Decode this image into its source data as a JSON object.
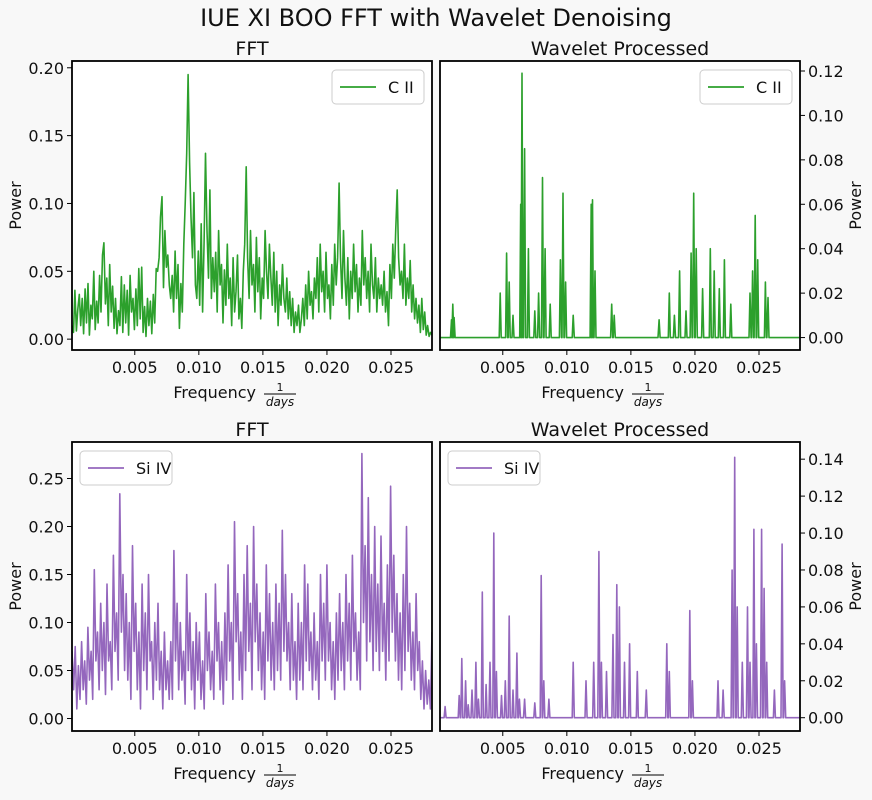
{
  "title": "IUE XI BOO FFT with Wavelet Denoising",
  "xlabel": "Frequency",
  "xlabel_frac_num": "1",
  "xlabel_frac_den": "days",
  "chart_data": [
    {
      "type": "line",
      "title": "FFT",
      "ylabel": "Power",
      "y_axis_side": "left",
      "legend": "upper right",
      "series_name": "C II",
      "color": "#2ca02c",
      "xlim": [
        0.0001,
        0.0282
      ],
      "ylim": [
        -0.008,
        0.205
      ],
      "xticks": [
        0.005,
        0.01,
        0.015,
        0.02,
        0.025
      ],
      "xtick_labels": [
        "0.005",
        "0.010",
        "0.015",
        "0.020",
        "0.025"
      ],
      "yticks": [
        0,
        0.05,
        0.1,
        0.15,
        0.2
      ],
      "ytick_labels": [
        "0.00",
        "0.05",
        "0.10",
        "0.15",
        "0.20"
      ],
      "x_start": 0.0001,
      "x_end": 0.0282,
      "values": [
        0.01,
        0.005,
        0.036,
        0.006,
        0.022,
        0.033,
        0.01,
        0.03,
        0.004,
        0.037,
        0.012,
        0.041,
        0.003,
        0.025,
        0.015,
        0.05,
        0.007,
        0.028,
        0.012,
        0.047,
        0.02,
        0.062,
        0.071,
        0.026,
        0.045,
        0.01,
        0.055,
        0.02,
        0.039,
        0.008,
        0.03,
        0.004,
        0.021,
        0.01,
        0.046,
        0.005,
        0.04,
        0.012,
        0.036,
        0.003,
        0.047,
        0.02,
        0.03,
        0.007,
        0.037,
        0.01,
        0.052,
        0.015,
        0.053,
        0.005,
        0.024,
        0.002,
        0.03,
        0.01,
        0.028,
        0.004,
        0.033,
        0.012,
        0.052,
        0.05,
        0.06,
        0.09,
        0.105,
        0.038,
        0.08,
        0.053,
        0.062,
        0.04,
        0.03,
        0.047,
        0.02,
        0.065,
        0.03,
        0.055,
        0.008,
        0.041,
        0.02,
        0.07,
        0.1,
        0.137,
        0.195,
        0.13,
        0.09,
        0.06,
        0.108,
        0.04,
        0.03,
        0.065,
        0.025,
        0.085,
        0.02,
        0.072,
        0.137,
        0.08,
        0.045,
        0.11,
        0.03,
        0.06,
        0.035,
        0.064,
        0.02,
        0.08,
        0.04,
        0.055,
        0.012,
        0.051,
        0.025,
        0.07,
        0.03,
        0.045,
        0.01,
        0.06,
        0.02,
        0.035,
        0.062,
        0.015,
        0.03,
        0.008,
        0.05,
        0.07,
        0.127,
        0.06,
        0.03,
        0.08,
        0.04,
        0.055,
        0.02,
        0.075,
        0.035,
        0.06,
        0.015,
        0.045,
        0.03,
        0.08,
        0.05,
        0.03,
        0.07,
        0.045,
        0.025,
        0.064,
        0.02,
        0.05,
        0.01,
        0.04,
        0.025,
        0.055,
        0.03,
        0.02,
        0.045,
        0.015,
        0.035,
        0.01,
        0.03,
        0.005,
        0.02,
        0.01,
        0.025,
        0.005,
        0.015,
        0.03,
        0.01,
        0.04,
        0.015,
        0.05,
        0.025,
        0.035,
        0.015,
        0.045,
        0.03,
        0.06,
        0.02,
        0.07,
        0.035,
        0.05,
        0.02,
        0.064,
        0.03,
        0.04,
        0.015,
        0.055,
        0.025,
        0.07,
        0.04,
        0.06,
        0.115,
        0.06,
        0.03,
        0.08,
        0.045,
        0.025,
        0.06,
        0.015,
        0.05,
        0.03,
        0.07,
        0.035,
        0.055,
        0.02,
        0.045,
        0.025,
        0.08,
        0.04,
        0.06,
        0.03,
        0.05,
        0.02,
        0.07,
        0.04,
        0.03,
        0.06,
        0.02,
        0.045,
        0.03,
        0.04,
        0.025,
        0.05,
        0.02,
        0.035,
        0.01,
        0.055,
        0.03,
        0.07,
        0.045,
        0.08,
        0.11,
        0.06,
        0.04,
        0.05,
        0.03,
        0.07,
        0.025,
        0.045,
        0.03,
        0.058,
        0.02,
        0.04,
        0.015,
        0.03,
        0.012,
        0.025,
        0.005,
        0.03,
        0.007,
        0.02,
        0.003,
        0.01,
        0.002,
        0.005,
        0.003
      ]
    },
    {
      "type": "line",
      "title": "Wavelet Processed",
      "ylabel": "Power",
      "y_axis_side": "right",
      "legend": "upper right",
      "series_name": "C II",
      "color": "#2ca02c",
      "xlim": [
        0.0001,
        0.0282
      ],
      "ylim": [
        -0.0056,
        0.1245
      ],
      "xticks": [
        0.005,
        0.01,
        0.015,
        0.02,
        0.025
      ],
      "xtick_labels": [
        "0.005",
        "0.010",
        "0.015",
        "0.020",
        "0.025"
      ],
      "yticks": [
        0,
        0.02,
        0.04,
        0.06,
        0.08,
        0.1,
        0.12
      ],
      "ytick_labels": [
        "0.00",
        "0.02",
        "0.04",
        "0.06",
        "0.08",
        "0.10",
        "0.12"
      ],
      "x_start": 0.0001,
      "x_end": 0.0282,
      "baseline": 0,
      "spikes": [
        [
          0.001,
          0.008
        ],
        [
          0.0011,
          0.015
        ],
        [
          0.0012,
          0.009
        ],
        [
          0.0048,
          0.02
        ],
        [
          0.0053,
          0.038
        ],
        [
          0.0055,
          0.025
        ],
        [
          0.0058,
          0.01
        ],
        [
          0.0064,
          0.06
        ],
        [
          0.0065,
          0.119
        ],
        [
          0.0067,
          0.085
        ],
        [
          0.007,
          0.04
        ],
        [
          0.0075,
          0.012
        ],
        [
          0.0078,
          0.02
        ],
        [
          0.0081,
          0.072
        ],
        [
          0.0083,
          0.04
        ],
        [
          0.0087,
          0.015
        ],
        [
          0.0095,
          0.035
        ],
        [
          0.0097,
          0.065
        ],
        [
          0.0099,
          0.025
        ],
        [
          0.0105,
          0.01
        ],
        [
          0.0119,
          0.06
        ],
        [
          0.012,
          0.062
        ],
        [
          0.0122,
          0.03
        ],
        [
          0.0135,
          0.015
        ],
        [
          0.0137,
          0.01
        ],
        [
          0.0172,
          0.008
        ],
        [
          0.018,
          0.02
        ],
        [
          0.0184,
          0.01
        ],
        [
          0.0188,
          0.03
        ],
        [
          0.0193,
          0.012
        ],
        [
          0.0197,
          0.038
        ],
        [
          0.0199,
          0.065
        ],
        [
          0.0201,
          0.04
        ],
        [
          0.0206,
          0.022
        ],
        [
          0.0212,
          0.04
        ],
        [
          0.0215,
          0.03
        ],
        [
          0.0219,
          0.022
        ],
        [
          0.0223,
          0.035
        ],
        [
          0.0228,
          0.015
        ],
        [
          0.0243,
          0.02
        ],
        [
          0.0245,
          0.03
        ],
        [
          0.0247,
          0.055
        ],
        [
          0.0249,
          0.035
        ],
        [
          0.0255,
          0.025
        ],
        [
          0.0257,
          0.018
        ]
      ]
    },
    {
      "type": "line",
      "title": "FFT",
      "ylabel": "Power",
      "y_axis_side": "left",
      "legend": "upper left",
      "series_name": "Si IV",
      "color": "#9467bd",
      "xlim": [
        0.0001,
        0.0282
      ],
      "ylim": [
        -0.013,
        0.288
      ],
      "xticks": [
        0.005,
        0.01,
        0.015,
        0.02,
        0.025
      ],
      "xtick_labels": [
        "0.005",
        "0.010",
        "0.015",
        "0.020",
        "0.025"
      ],
      "yticks": [
        0,
        0.05,
        0.1,
        0.15,
        0.2,
        0.25
      ],
      "ytick_labels": [
        "0.00",
        "0.05",
        "0.10",
        "0.15",
        "0.20",
        "0.25"
      ],
      "x_start": 0.0001,
      "x_end": 0.0282,
      "values": [
        0.07,
        0.03,
        0.075,
        0.01,
        0.055,
        0.02,
        0.08,
        0.03,
        0.06,
        0.015,
        0.095,
        0.04,
        0.07,
        0.02,
        0.155,
        0.06,
        0.09,
        0.03,
        0.12,
        0.05,
        0.1,
        0.025,
        0.14,
        0.06,
        0.08,
        0.03,
        0.17,
        0.07,
        0.11,
        0.04,
        0.234,
        0.09,
        0.15,
        0.05,
        0.13,
        0.04,
        0.1,
        0.02,
        0.18,
        0.07,
        0.12,
        0.03,
        0.09,
        0.01,
        0.14,
        0.05,
        0.11,
        0.03,
        0.15,
        0.06,
        0.08,
        0.02,
        0.1,
        0.04,
        0.12,
        0.03,
        0.07,
        0.01,
        0.09,
        0.03,
        0.06,
        0.02,
        0.08,
        0.02,
        0.175,
        0.06,
        0.12,
        0.03,
        0.1,
        0.04,
        0.07,
        0.015,
        0.15,
        0.05,
        0.11,
        0.03,
        0.08,
        0.01,
        0.1,
        0.04,
        0.09,
        0.02,
        0.06,
        0.01,
        0.13,
        0.05,
        0.09,
        0.03,
        0.07,
        0.02,
        0.14,
        0.06,
        0.1,
        0.03,
        0.08,
        0.015,
        0.11,
        0.04,
        0.16,
        0.06,
        0.1,
        0.02,
        0.205,
        0.08,
        0.13,
        0.04,
        0.09,
        0.02,
        0.15,
        0.05,
        0.18,
        0.07,
        0.12,
        0.03,
        0.2,
        0.08,
        0.14,
        0.05,
        0.11,
        0.03,
        0.09,
        0.02,
        0.16,
        0.06,
        0.13,
        0.04,
        0.1,
        0.03,
        0.14,
        0.05,
        0.12,
        0.04,
        0.196,
        0.07,
        0.15,
        0.06,
        0.1,
        0.03,
        0.13,
        0.04,
        0.08,
        0.02,
        0.12,
        0.04,
        0.1,
        0.03,
        0.16,
        0.06,
        0.14,
        0.05,
        0.09,
        0.03,
        0.11,
        0.04,
        0.08,
        0.02,
        0.15,
        0.06,
        0.12,
        0.04,
        0.16,
        0.06,
        0.1,
        0.03,
        0.08,
        0.02,
        0.11,
        0.04,
        0.13,
        0.05,
        0.1,
        0.03,
        0.15,
        0.06,
        0.12,
        0.04,
        0.17,
        0.07,
        0.11,
        0.04,
        0.09,
        0.03,
        0.276,
        0.1,
        0.18,
        0.06,
        0.23,
        0.08,
        0.15,
        0.05,
        0.2,
        0.07,
        0.14,
        0.05,
        0.19,
        0.07,
        0.12,
        0.04,
        0.16,
        0.06,
        0.242,
        0.09,
        0.17,
        0.06,
        0.13,
        0.04,
        0.11,
        0.03,
        0.15,
        0.05,
        0.2,
        0.07,
        0.12,
        0.04,
        0.09,
        0.03,
        0.13,
        0.05,
        0.08,
        0.02,
        0.06,
        0.01,
        0.05,
        0.015,
        0.04,
        0.01,
        0.09
      ]
    },
    {
      "type": "line",
      "title": "Wavelet Processed",
      "ylabel": "Power",
      "y_axis_side": "right",
      "legend": "upper left",
      "series_name": "Si IV",
      "color": "#9467bd",
      "xlim": [
        0.0001,
        0.0282
      ],
      "ylim": [
        -0.0072,
        0.1493
      ],
      "xticks": [
        0.005,
        0.01,
        0.015,
        0.02,
        0.025
      ],
      "xtick_labels": [
        "0.005",
        "0.010",
        "0.015",
        "0.020",
        "0.025"
      ],
      "yticks": [
        0,
        0.02,
        0.04,
        0.06,
        0.08,
        0.1,
        0.12,
        0.14
      ],
      "ytick_labels": [
        "0.00",
        "0.02",
        "0.04",
        "0.06",
        "0.08",
        "0.10",
        "0.12",
        "0.14"
      ],
      "x_start": 0.0001,
      "x_end": 0.0282,
      "baseline": 0,
      "spikes": [
        [
          0.0005,
          0.006
        ],
        [
          0.0016,
          0.012
        ],
        [
          0.0018,
          0.032
        ],
        [
          0.0021,
          0.02
        ],
        [
          0.0023,
          0.007
        ],
        [
          0.0026,
          0.015
        ],
        [
          0.0029,
          0.03
        ],
        [
          0.0031,
          0.01
        ],
        [
          0.0034,
          0.068
        ],
        [
          0.0037,
          0.018
        ],
        [
          0.004,
          0.03
        ],
        [
          0.0043,
          0.1
        ],
        [
          0.0045,
          0.025
        ],
        [
          0.0049,
          0.012
        ],
        [
          0.0052,
          0.02
        ],
        [
          0.0055,
          0.055
        ],
        [
          0.0058,
          0.015
        ],
        [
          0.0061,
          0.035
        ],
        [
          0.0063,
          0.01
        ],
        [
          0.0067,
          0.01
        ],
        [
          0.0075,
          0.008
        ],
        [
          0.008,
          0.077
        ],
        [
          0.0082,
          0.02
        ],
        [
          0.0086,
          0.01
        ],
        [
          0.0105,
          0.03
        ],
        [
          0.0115,
          0.02
        ],
        [
          0.0121,
          0.03
        ],
        [
          0.0125,
          0.09
        ],
        [
          0.0127,
          0.03
        ],
        [
          0.0131,
          0.025
        ],
        [
          0.0136,
          0.045
        ],
        [
          0.0139,
          0.072
        ],
        [
          0.0141,
          0.06
        ],
        [
          0.0145,
          0.03
        ],
        [
          0.0149,
          0.04
        ],
        [
          0.0155,
          0.025
        ],
        [
          0.0162,
          0.015
        ],
        [
          0.0178,
          0.04
        ],
        [
          0.018,
          0.025
        ],
        [
          0.0196,
          0.058
        ],
        [
          0.0198,
          0.02
        ],
        [
          0.0218,
          0.02
        ],
        [
          0.0222,
          0.015
        ],
        [
          0.0229,
          0.08
        ],
        [
          0.0231,
          0.141
        ],
        [
          0.0233,
          0.06
        ],
        [
          0.0237,
          0.03
        ],
        [
          0.0241,
          0.06
        ],
        [
          0.0243,
          0.03
        ],
        [
          0.0246,
          0.102
        ],
        [
          0.0248,
          0.04
        ],
        [
          0.0252,
          0.102
        ],
        [
          0.0254,
          0.07
        ],
        [
          0.0256,
          0.03
        ],
        [
          0.0262,
          0.015
        ],
        [
          0.0268,
          0.094
        ],
        [
          0.027,
          0.02
        ]
      ]
    }
  ]
}
